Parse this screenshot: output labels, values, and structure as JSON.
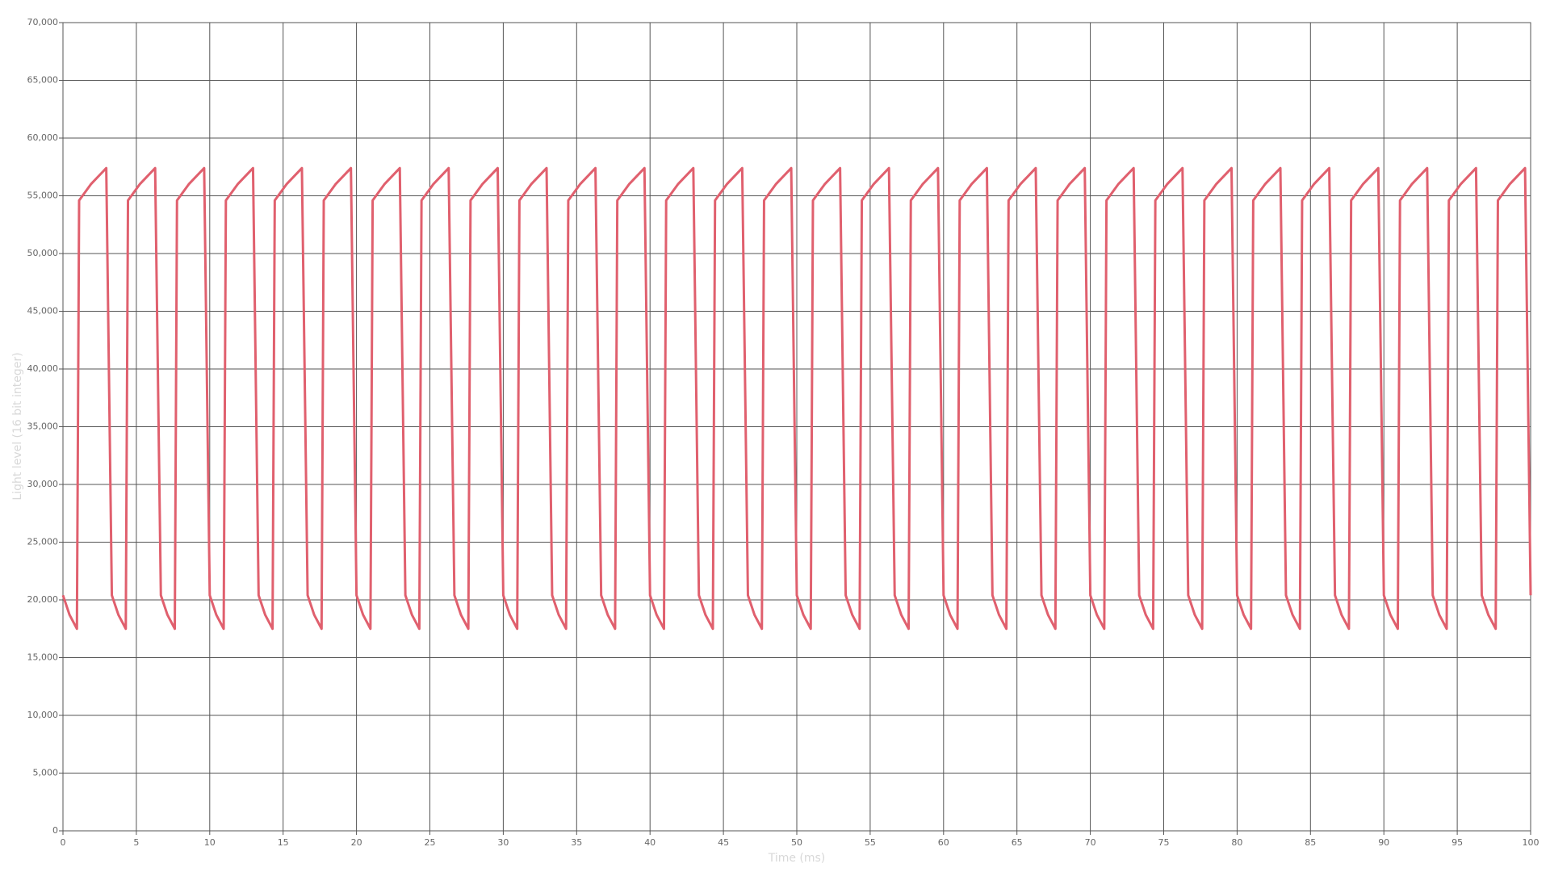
{
  "chart_data": {
    "type": "line",
    "x_label": "Time (ms)",
    "y_label": "Light level (16 bit integer)",
    "xlim": [
      0,
      100
    ],
    "ylim": [
      0,
      70000
    ],
    "xticks": [
      0,
      5,
      10,
      15,
      20,
      25,
      30,
      35,
      40,
      45,
      50,
      55,
      60,
      65,
      70,
      75,
      80,
      85,
      90,
      95,
      100
    ],
    "yticks": [
      0,
      {
        "value": 5000,
        "label": "5,000"
      },
      {
        "value": 10000,
        "label": "10,000"
      },
      {
        "value": 15000,
        "label": "15,000"
      },
      {
        "value": 20000,
        "label": "20,000"
      },
      {
        "value": 25000,
        "label": "25,000"
      },
      {
        "value": 30000,
        "label": "30,000"
      },
      {
        "value": 35000,
        "label": "35,000"
      },
      {
        "value": 40000,
        "label": "40,000"
      },
      {
        "value": 45000,
        "label": "45,000"
      },
      {
        "value": 50000,
        "label": "50,000"
      },
      {
        "value": 55000,
        "label": "55,000"
      },
      {
        "value": 60000,
        "label": "60,000"
      },
      {
        "value": 65000,
        "label": "65,000"
      },
      {
        "value": 70000,
        "label": "70,000"
      }
    ],
    "grid": true,
    "x": [
      0,
      0.45,
      0.95,
      1.1,
      1.9,
      2.95,
      3.33,
      3.78,
      4.28,
      4.43,
      5.23,
      6.28,
      6.67,
      7.12,
      7.62,
      7.77,
      8.57,
      9.62,
      10,
      10.45,
      10.95,
      11.1,
      11.9,
      12.95,
      13.33,
      13.78,
      14.28,
      14.43,
      15.23,
      16.28,
      16.67,
      17.12,
      17.62,
      17.77,
      18.57,
      19.62,
      20,
      20.45,
      20.95,
      21.1,
      21.9,
      22.95,
      23.33,
      23.78,
      24.28,
      24.43,
      25.23,
      26.28,
      26.67,
      27.12,
      27.62,
      27.77,
      28.57,
      29.62,
      30,
      30.45,
      30.95,
      31.1,
      31.9,
      32.95,
      33.33,
      33.78,
      34.28,
      34.43,
      35.23,
      36.28,
      36.67,
      37.12,
      37.62,
      37.77,
      38.57,
      39.62,
      40,
      40.45,
      40.95,
      41.1,
      41.9,
      42.95,
      43.33,
      43.78,
      44.28,
      44.43,
      45.23,
      46.28,
      46.67,
      47.12,
      47.62,
      47.77,
      48.57,
      49.62,
      50,
      50.45,
      50.95,
      51.1,
      51.9,
      52.95,
      53.33,
      53.78,
      54.28,
      54.43,
      55.23,
      56.28,
      56.67,
      57.12,
      57.62,
      57.77,
      58.57,
      59.62,
      60,
      60.45,
      60.95,
      61.1,
      61.9,
      62.95,
      63.33,
      63.78,
      64.28,
      64.43,
      65.23,
      66.28,
      66.67,
      67.12,
      67.62,
      67.77,
      68.57,
      69.62,
      70,
      70.45,
      70.95,
      71.1,
      71.9,
      72.95,
      73.33,
      73.78,
      74.28,
      74.43,
      75.23,
      76.28,
      76.67,
      77.12,
      77.62,
      77.77,
      78.57,
      79.62,
      80,
      80.45,
      80.95,
      81.1,
      81.9,
      82.95,
      83.33,
      83.78,
      84.28,
      84.43,
      85.23,
      86.28,
      86.67,
      87.12,
      87.62,
      87.77,
      88.57,
      89.62,
      90,
      90.45,
      90.95,
      91.1,
      91.9,
      92.95,
      93.33,
      93.78,
      94.28,
      94.43,
      95.23,
      96.28,
      96.67,
      97.12,
      97.62,
      97.77,
      98.57,
      99.62,
      100
    ],
    "series": [
      {
        "color": "#e0606e",
        "values": [
          20400,
          18700,
          17500,
          54600,
          56000,
          57400,
          20400,
          18700,
          17500,
          54600,
          56000,
          57400,
          20400,
          18700,
          17500,
          54600,
          56000,
          57400,
          20400,
          18700,
          17500,
          54600,
          56000,
          57400,
          20400,
          18700,
          17500,
          54600,
          56000,
          57400,
          20400,
          18700,
          17500,
          54600,
          56000,
          57400,
          20400,
          18700,
          17500,
          54600,
          56000,
          57400,
          20400,
          18700,
          17500,
          54600,
          56000,
          57400,
          20400,
          18700,
          17500,
          54600,
          56000,
          57400,
          20400,
          18700,
          17500,
          54600,
          56000,
          57400,
          20400,
          18700,
          17500,
          54600,
          56000,
          57400,
          20400,
          18700,
          17500,
          54600,
          56000,
          57400,
          20400,
          18700,
          17500,
          54600,
          56000,
          57400,
          20400,
          18700,
          17500,
          54600,
          56000,
          57400,
          20400,
          18700,
          17500,
          54600,
          56000,
          57400,
          20400,
          18700,
          17500,
          54600,
          56000,
          57400,
          20400,
          18700,
          17500,
          54600,
          56000,
          57400,
          20400,
          18700,
          17500,
          54600,
          56000,
          57400,
          20400,
          18700,
          17500,
          54600,
          56000,
          57400,
          20400,
          18700,
          17500,
          54600,
          56000,
          57400,
          20400,
          18700,
          17500,
          54600,
          56000,
          57400,
          20400,
          18700,
          17500,
          54600,
          56000,
          57400,
          20400,
          18700,
          17500,
          54600,
          56000,
          57400,
          20400,
          18700,
          17500,
          54600,
          56000,
          57400,
          20400,
          18700,
          17500,
          54600,
          56000,
          57400,
          20400,
          18700,
          17500,
          54600,
          56000,
          57400,
          20400,
          18700,
          17500,
          54600,
          56000,
          57400,
          20400,
          18700,
          17500,
          54600,
          56000,
          57400,
          20400,
          18700,
          17500,
          54600,
          56000,
          57400,
          20400,
          18700,
          17500,
          54600,
          56000,
          57400,
          20400
        ]
      }
    ]
  }
}
